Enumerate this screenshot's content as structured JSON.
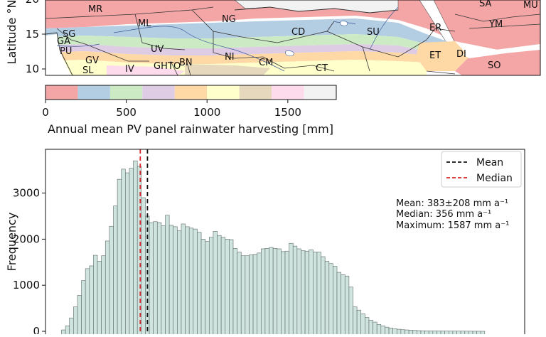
{
  "map": {
    "ylabel": "Latitude °N",
    "yticks": [
      "20",
      "15",
      "10"
    ],
    "country_labels": [
      "MR",
      "ML",
      "NG",
      "SA",
      "MU",
      "SG",
      "GA",
      "PU",
      "GV",
      "SL",
      "UV",
      "IV",
      "GH",
      "TO",
      "BN",
      "NI",
      "CM",
      "CD",
      "SU",
      "ER",
      "YM",
      "ET",
      "DI",
      "SO",
      "CT"
    ],
    "colors": [
      "#f4a6a6",
      "#b3cde3",
      "#ccebc5",
      "#decbe4",
      "#fed9a6",
      "#ffffcc",
      "#e5d8bd",
      "#fddaec",
      "#f2f2f2"
    ]
  },
  "colorbar": {
    "label": "Annual mean PV panel rainwater harvesting [mm]",
    "ticks": [
      "0",
      "500",
      "1000",
      "1500"
    ],
    "tick_values": [
      0,
      500,
      1000,
      1500
    ],
    "range": [
      0,
      1800
    ],
    "bounds": [
      0,
      200,
      400,
      600,
      800,
      1000,
      1200,
      1400,
      1600,
      1800
    ],
    "colors": [
      "#f4a6a6",
      "#b3cde3",
      "#ccebc5",
      "#decbe4",
      "#fed9a6",
      "#ffffcc",
      "#e5d8bd",
      "#fddaec",
      "#f2f2f2"
    ]
  },
  "stats": {
    "mean": "Mean: 383±208 mm a⁻¹",
    "median": "Median: 356 mm a⁻¹",
    "maximum": "Maximum: 1587 mm a⁻¹"
  },
  "chart_data": {
    "type": "bar",
    "ylabel": "Frequency",
    "yticks": [
      0,
      1000,
      2000,
      3000
    ],
    "ylim": [
      0,
      3950
    ],
    "xlim": [
      0,
      1800
    ],
    "bin_width": 15,
    "bin_start": 60,
    "values": [
      30,
      120,
      290,
      530,
      780,
      1100,
      1360,
      1420,
      1650,
      1520,
      1640,
      1960,
      2280,
      2720,
      3300,
      3520,
      3440,
      3540,
      3700,
      3580,
      2900,
      2500,
      2360,
      2380,
      2360,
      2290,
      2520,
      2300,
      2270,
      2180,
      2330,
      2270,
      2240,
      2220,
      2150,
      2000,
      1950,
      2040,
      2170,
      2080,
      2040,
      2000,
      1990,
      1800,
      1720,
      1640,
      1640,
      1660,
      1670,
      1700,
      1790,
      1800,
      1820,
      1800,
      1790,
      1730,
      1740,
      1910,
      1850,
      1790,
      1750,
      1740,
      1770,
      1720,
      1720,
      1620,
      1520,
      1470,
      1410,
      1280,
      1230,
      1200,
      960,
      530,
      460,
      380,
      300,
      240,
      200,
      150,
      120,
      90,
      70,
      55,
      45,
      35,
      30,
      25,
      20,
      15,
      12,
      10,
      10,
      8,
      8,
      6,
      6,
      5,
      5,
      4,
      4,
      3,
      3,
      2,
      2,
      1
    ],
    "mean": 383,
    "median": 356,
    "legend": [
      "Mean",
      "Median"
    ],
    "legend_placement": "top-right",
    "series_colors": {
      "bars": "#cfe3df",
      "bar_edge": "#5c6b68",
      "mean": "#111111",
      "median": "#d62728"
    }
  }
}
